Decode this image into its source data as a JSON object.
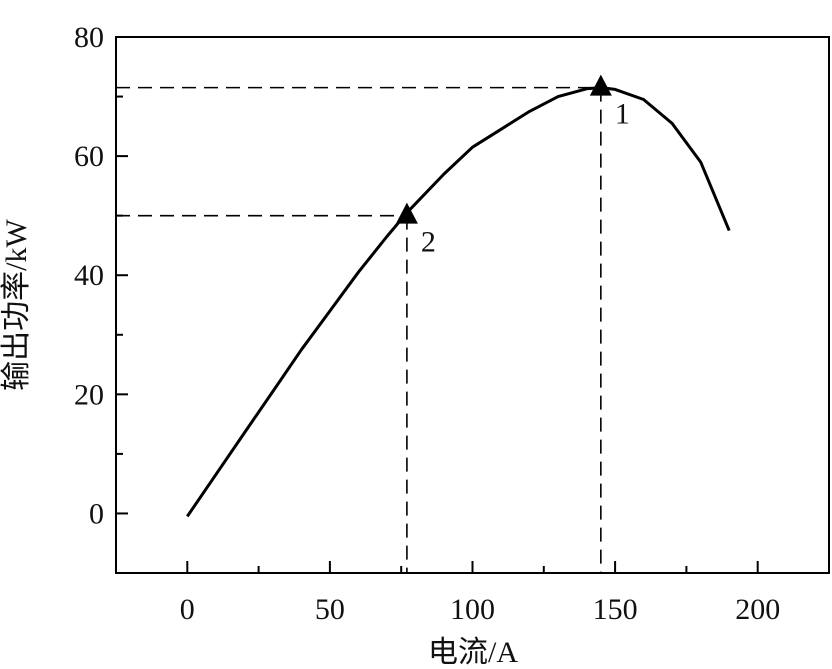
{
  "chart_data": {
    "type": "line",
    "title": "",
    "xlabel": "电流/A",
    "ylabel": "输出功率/kW",
    "xlim": [
      -25,
      225
    ],
    "ylim": [
      -10,
      80
    ],
    "x_ticks": [
      0,
      50,
      100,
      150,
      200
    ],
    "x_minor_ticks": [
      25,
      75,
      125,
      175
    ],
    "y_ticks": [
      0,
      20,
      40,
      60,
      80
    ],
    "y_minor_ticks": [
      10,
      30,
      50,
      70
    ],
    "grid": false,
    "legend": null,
    "series": [
      {
        "name": "输出功率",
        "color": "#000000",
        "x": [
          0,
          10,
          20,
          30,
          40,
          50,
          60,
          70,
          77,
          90,
          100,
          110,
          120,
          130,
          140,
          145,
          150,
          160,
          170,
          180,
          190
        ],
        "y": [
          -0.5,
          6.5,
          13.5,
          20.5,
          27.5,
          34,
          40.5,
          46.5,
          50.5,
          57,
          61.5,
          64.5,
          67.5,
          70,
          71.3,
          71.5,
          71.2,
          69.5,
          65.5,
          59,
          47.5
        ]
      }
    ],
    "annotations": [
      {
        "label": "1",
        "x": 145,
        "y": 71.5,
        "marker": "triangle",
        "dashed_guides": true
      },
      {
        "label": "2",
        "x": 77,
        "y": 50,
        "marker": "triangle",
        "dashed_guides": true
      }
    ]
  }
}
